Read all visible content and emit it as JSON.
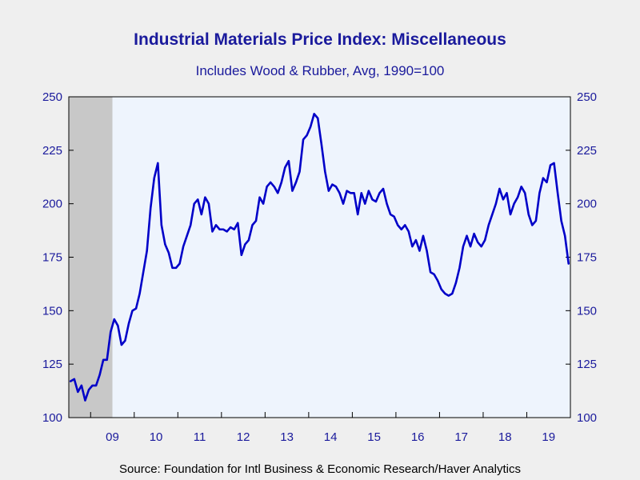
{
  "title": "Industrial Materials Price Index: Miscellaneous",
  "subtitle": "Includes Wood & Rubber, Avg, 1990=100",
  "source": "Source:  Foundation for Intl Business & Economic Research/Haver Analytics",
  "colors": {
    "line": "#0000c8",
    "plot_bg": "#eef4fd",
    "recession": "#c8c8c8",
    "axis_text": "#1a1a9c",
    "page_bg": "#efefef"
  },
  "chart_data": {
    "type": "line",
    "title": "Industrial Materials Price Index: Miscellaneous",
    "subtitle": "Includes Wood & Rubber, Avg, 1990=100",
    "ylim": [
      100,
      250
    ],
    "y_ticks": [
      100,
      125,
      150,
      175,
      200,
      225,
      250
    ],
    "x_range": [
      "2008-07",
      "2019-12"
    ],
    "x_tick_labels": [
      "09",
      "10",
      "11",
      "12",
      "13",
      "14",
      "15",
      "16",
      "17",
      "18",
      "19"
    ],
    "grid": false,
    "y_axis_both_sides": true,
    "recession_shading": {
      "start": "2008-07",
      "end": "2009-06"
    },
    "series": [
      {
        "points": [
          [
            "2008-07",
            117
          ],
          [
            "2008-08",
            118
          ],
          [
            "2008-09",
            112
          ],
          [
            "2008-10",
            115
          ],
          [
            "2008-11",
            108
          ],
          [
            "2008-12",
            113
          ],
          [
            "2009-01",
            115
          ],
          [
            "2009-02",
            115
          ],
          [
            "2009-03",
            120
          ],
          [
            "2009-04",
            127
          ],
          [
            "2009-05",
            127
          ],
          [
            "2009-06",
            140
          ],
          [
            "2009-07",
            146
          ],
          [
            "2009-08",
            143
          ],
          [
            "2009-09",
            134
          ],
          [
            "2009-10",
            136
          ],
          [
            "2009-11",
            144
          ],
          [
            "2009-12",
            150
          ],
          [
            "2010-01",
            151
          ],
          [
            "2010-02",
            158
          ],
          [
            "2010-03",
            168
          ],
          [
            "2010-04",
            178
          ],
          [
            "2010-05",
            198
          ],
          [
            "2010-06",
            212
          ],
          [
            "2010-07",
            219
          ],
          [
            "2010-08",
            190
          ],
          [
            "2010-09",
            181
          ],
          [
            "2010-10",
            177
          ],
          [
            "2010-11",
            170
          ],
          [
            "2010-12",
            170
          ],
          [
            "2011-01",
            172
          ],
          [
            "2011-02",
            180
          ],
          [
            "2011-03",
            185
          ],
          [
            "2011-04",
            190
          ],
          [
            "2011-05",
            200
          ],
          [
            "2011-06",
            202
          ],
          [
            "2011-07",
            195
          ],
          [
            "2011-08",
            203
          ],
          [
            "2011-09",
            200
          ],
          [
            "2011-10",
            187
          ],
          [
            "2011-11",
            190
          ],
          [
            "2011-12",
            188
          ],
          [
            "2012-01",
            188
          ],
          [
            "2012-02",
            187
          ],
          [
            "2012-03",
            189
          ],
          [
            "2012-04",
            188
          ],
          [
            "2012-05",
            191
          ],
          [
            "2012-06",
            176
          ],
          [
            "2012-07",
            181
          ],
          [
            "2012-08",
            183
          ],
          [
            "2012-09",
            190
          ],
          [
            "2012-10",
            192
          ],
          [
            "2012-11",
            203
          ],
          [
            "2012-12",
            200
          ],
          [
            "2013-01",
            208
          ],
          [
            "2013-02",
            210
          ],
          [
            "2013-03",
            208
          ],
          [
            "2013-04",
            205
          ],
          [
            "2013-05",
            210
          ],
          [
            "2013-06",
            217
          ],
          [
            "2013-07",
            220
          ],
          [
            "2013-08",
            206
          ],
          [
            "2013-09",
            210
          ],
          [
            "2013-10",
            215
          ],
          [
            "2013-11",
            230
          ],
          [
            "2013-12",
            232
          ],
          [
            "2014-01",
            236
          ],
          [
            "2014-02",
            242
          ],
          [
            "2014-03",
            240
          ],
          [
            "2014-04",
            228
          ],
          [
            "2014-05",
            215
          ],
          [
            "2014-06",
            206
          ],
          [
            "2014-07",
            209
          ],
          [
            "2014-08",
            208
          ],
          [
            "2014-09",
            205
          ],
          [
            "2014-10",
            200
          ],
          [
            "2014-11",
            206
          ],
          [
            "2014-12",
            205
          ],
          [
            "2015-01",
            205
          ],
          [
            "2015-02",
            195
          ],
          [
            "2015-03",
            205
          ],
          [
            "2015-04",
            200
          ],
          [
            "2015-05",
            206
          ],
          [
            "2015-06",
            202
          ],
          [
            "2015-07",
            201
          ],
          [
            "2015-08",
            205
          ],
          [
            "2015-09",
            207
          ],
          [
            "2015-10",
            200
          ],
          [
            "2015-11",
            195
          ],
          [
            "2015-12",
            194
          ],
          [
            "2016-01",
            190
          ],
          [
            "2016-02",
            188
          ],
          [
            "2016-03",
            190
          ],
          [
            "2016-04",
            187
          ],
          [
            "2016-05",
            180
          ],
          [
            "2016-06",
            183
          ],
          [
            "2016-07",
            178
          ],
          [
            "2016-08",
            185
          ],
          [
            "2016-09",
            178
          ],
          [
            "2016-10",
            168
          ],
          [
            "2016-11",
            167
          ],
          [
            "2016-12",
            164
          ],
          [
            "2017-01",
            160
          ],
          [
            "2017-02",
            158
          ],
          [
            "2017-03",
            157
          ],
          [
            "2017-04",
            158
          ],
          [
            "2017-05",
            163
          ],
          [
            "2017-06",
            170
          ],
          [
            "2017-07",
            180
          ],
          [
            "2017-08",
            185
          ],
          [
            "2017-09",
            180
          ],
          [
            "2017-10",
            186
          ],
          [
            "2017-11",
            182
          ],
          [
            "2017-12",
            180
          ],
          [
            "2018-01",
            183
          ],
          [
            "2018-02",
            190
          ],
          [
            "2018-03",
            195
          ],
          [
            "2018-04",
            200
          ],
          [
            "2018-05",
            207
          ],
          [
            "2018-06",
            202
          ],
          [
            "2018-07",
            205
          ],
          [
            "2018-08",
            195
          ],
          [
            "2018-09",
            200
          ],
          [
            "2018-10",
            203
          ],
          [
            "2018-11",
            208
          ],
          [
            "2018-12",
            205
          ],
          [
            "2019-01",
            195
          ],
          [
            "2019-02",
            190
          ],
          [
            "2019-03",
            192
          ],
          [
            "2019-04",
            205
          ],
          [
            "2019-05",
            212
          ],
          [
            "2019-06",
            210
          ],
          [
            "2019-07",
            218
          ],
          [
            "2019-08",
            219
          ],
          [
            "2019-09",
            205
          ],
          [
            "2019-10",
            192
          ],
          [
            "2019-11",
            185
          ],
          [
            "2019-12",
            172
          ]
        ]
      }
    ]
  }
}
